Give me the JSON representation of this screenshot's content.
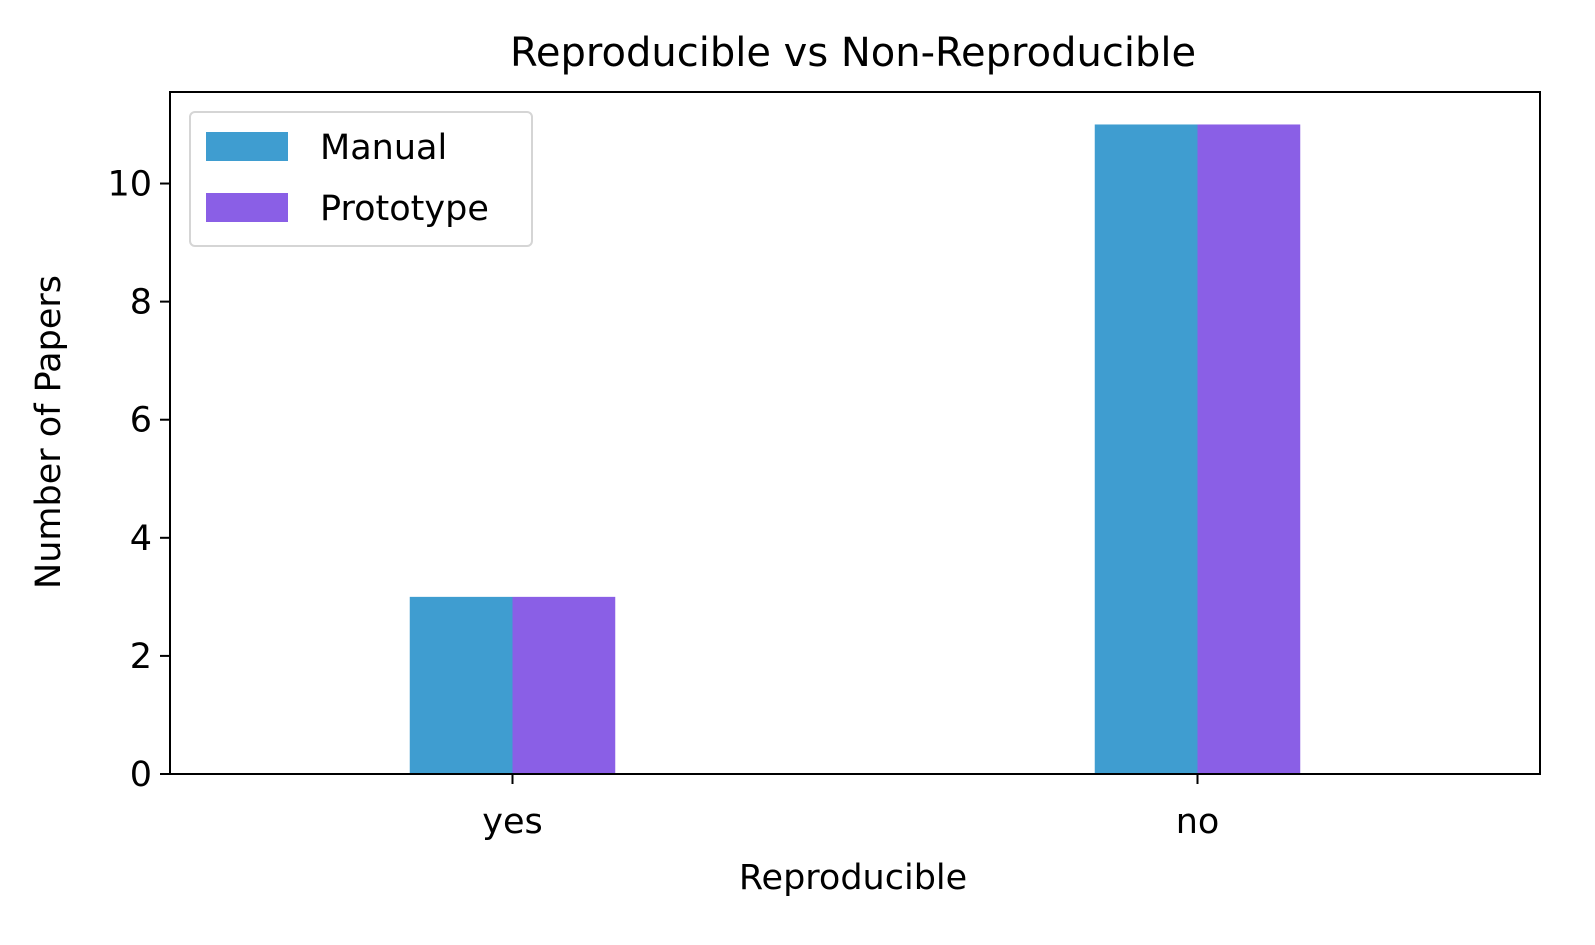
{
  "chart_data": {
    "type": "bar",
    "title": "Reproducible vs Non-Reproducible",
    "xlabel": "Reproducible",
    "ylabel": "Number of Papers",
    "categories": [
      "yes",
      "no"
    ],
    "series": [
      {
        "name": "Manual",
        "values": [
          3,
          11
        ],
        "color": "#3f9dd0"
      },
      {
        "name": "Prototype",
        "values": [
          3,
          11
        ],
        "color": "#8a5fe6"
      }
    ],
    "ylim": [
      0,
      11.55
    ],
    "yticks": [
      0,
      2,
      4,
      6,
      8,
      10
    ],
    "grid": false,
    "legend_position": "top-left"
  }
}
